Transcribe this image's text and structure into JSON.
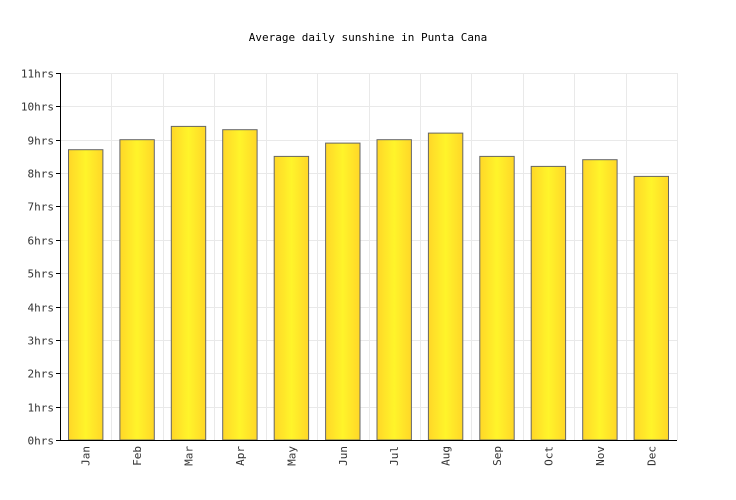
{
  "chart_data": {
    "type": "bar",
    "title": "Average daily sunshine in Punta Cana",
    "xlabel": "",
    "ylabel": "",
    "categories": [
      "Jan",
      "Feb",
      "Mar",
      "Apr",
      "May",
      "Jun",
      "Jul",
      "Aug",
      "Sep",
      "Oct",
      "Nov",
      "Dec"
    ],
    "values": [
      8.7,
      9.0,
      9.4,
      9.3,
      8.5,
      8.9,
      9.0,
      9.2,
      8.5,
      8.2,
      8.4,
      7.9
    ],
    "ylim": [
      0,
      11
    ],
    "ytick_labels": [
      "0hrs",
      "1hrs",
      "2hrs",
      "3hrs",
      "4hrs",
      "5hrs",
      "6hrs",
      "7hrs",
      "8hrs",
      "9hrs",
      "10hrs",
      "11hrs"
    ],
    "grid": true,
    "legend": "none",
    "colors": {
      "bar_edge": "#ffd728",
      "bar_center": "#fff42a",
      "bar_stroke": "#666666"
    }
  }
}
